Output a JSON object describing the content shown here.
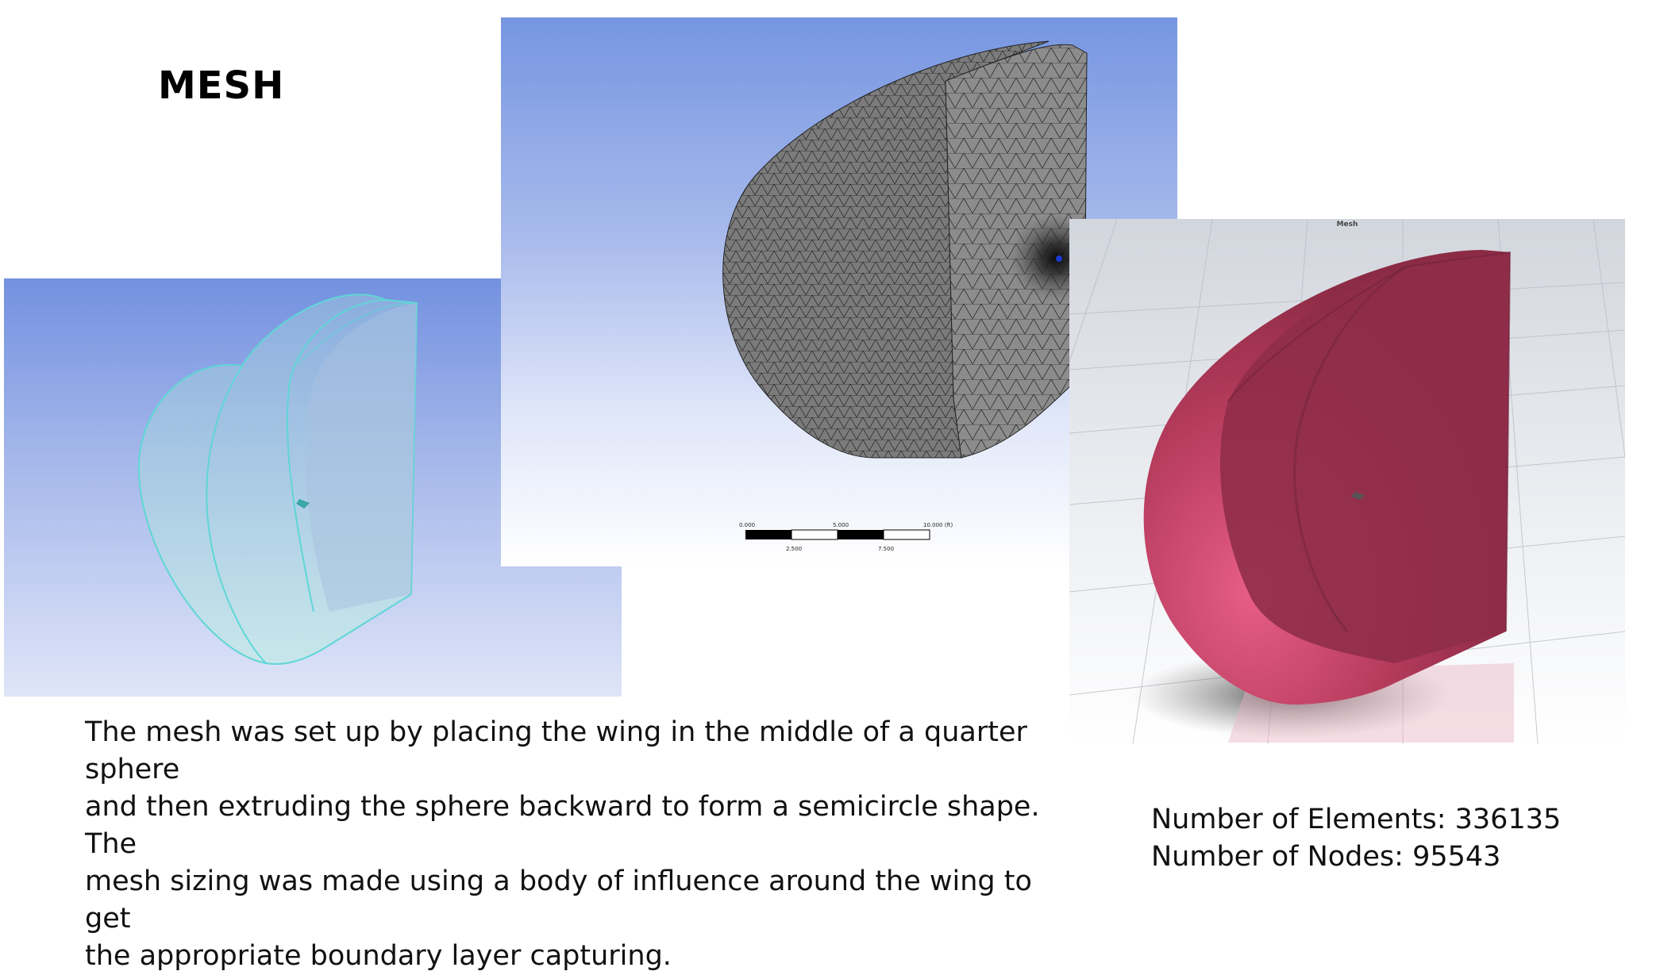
{
  "title": "MESH",
  "description_lines": [
    "The mesh was set up by placing the wing in the middle of a quarter sphere",
    "and then extruding the sphere backward to form a semicircle shape. The",
    "mesh sizing was made using a body of influence around the wing to get",
    "the appropriate boundary layer capturing."
  ],
  "stats": {
    "elements_label": "Number of Elements: 336135",
    "nodes_label": "Number of Nodes: 95543"
  },
  "center_view": {
    "scale_labels_top": [
      "0.000",
      "5.000",
      "10.000 (ft)"
    ],
    "scale_labels_bottom": [
      "2.500",
      "7.500"
    ]
  },
  "right_view": {
    "title": "Mesh"
  },
  "colors": {
    "geometry_fill": "#9fd3dc",
    "geometry_edge": "#5fd6d6",
    "mesh_fill": "#8a8a8a",
    "mesh_line": "#2b2b2b",
    "body_fill": "#a8324f"
  }
}
